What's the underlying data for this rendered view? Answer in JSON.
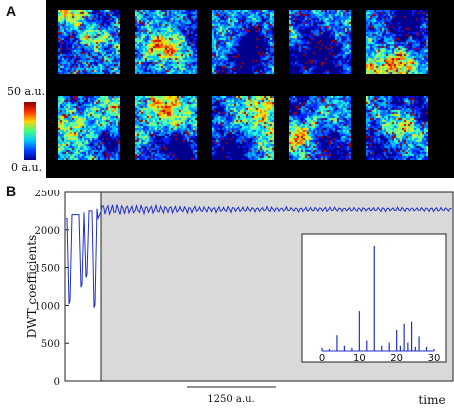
{
  "panels": {
    "a_label": "A",
    "b_label": "B"
  },
  "colorbar": {
    "max_label": "50 a.u.",
    "min_label": "0 a.u."
  },
  "chart_data": [
    {
      "type": "line",
      "ylabel": "DWT coefficients",
      "xlabel": "time",
      "ylim": [
        0,
        2500
      ],
      "yticks": [
        0,
        500,
        1000,
        1500,
        2000,
        2500
      ],
      "scale_bar_label": "1250 a.u.",
      "highlight": "gray shaded region from end of initial oscillations to right edge",
      "grid": false,
      "series": [
        {
          "color": "#1f2fcf",
          "segments": [
            {
              "phase": "initial spikes",
              "dips": [
                {
                  "min": 1020,
                  "baseline": 2200
                },
                {
                  "min": 1240,
                  "baseline": 2230
                },
                {
                  "min": 1370,
                  "baseline": 2250
                },
                {
                  "min": 970,
                  "baseline": 2280
                }
              ]
            },
            {
              "phase": "steady",
              "mean": 2270,
              "amplitude": 60
            }
          ]
        }
      ]
    },
    {
      "type": "bar",
      "title": "",
      "xlim": [
        0,
        30
      ],
      "xticks": [
        0,
        10,
        20,
        30
      ],
      "x": [
        0,
        2,
        4,
        6,
        8,
        10,
        12,
        14,
        16,
        18,
        20,
        21,
        22,
        23,
        24,
        25,
        26,
        28,
        30
      ],
      "values": [
        0.03,
        0.02,
        0.15,
        0.05,
        0.03,
        0.38,
        0.1,
        1.0,
        0.05,
        0.08,
        0.2,
        0.05,
        0.26,
        0.08,
        0.28,
        0.04,
        0.14,
        0.04,
        0.02
      ],
      "color": "#1f2fcf"
    }
  ]
}
